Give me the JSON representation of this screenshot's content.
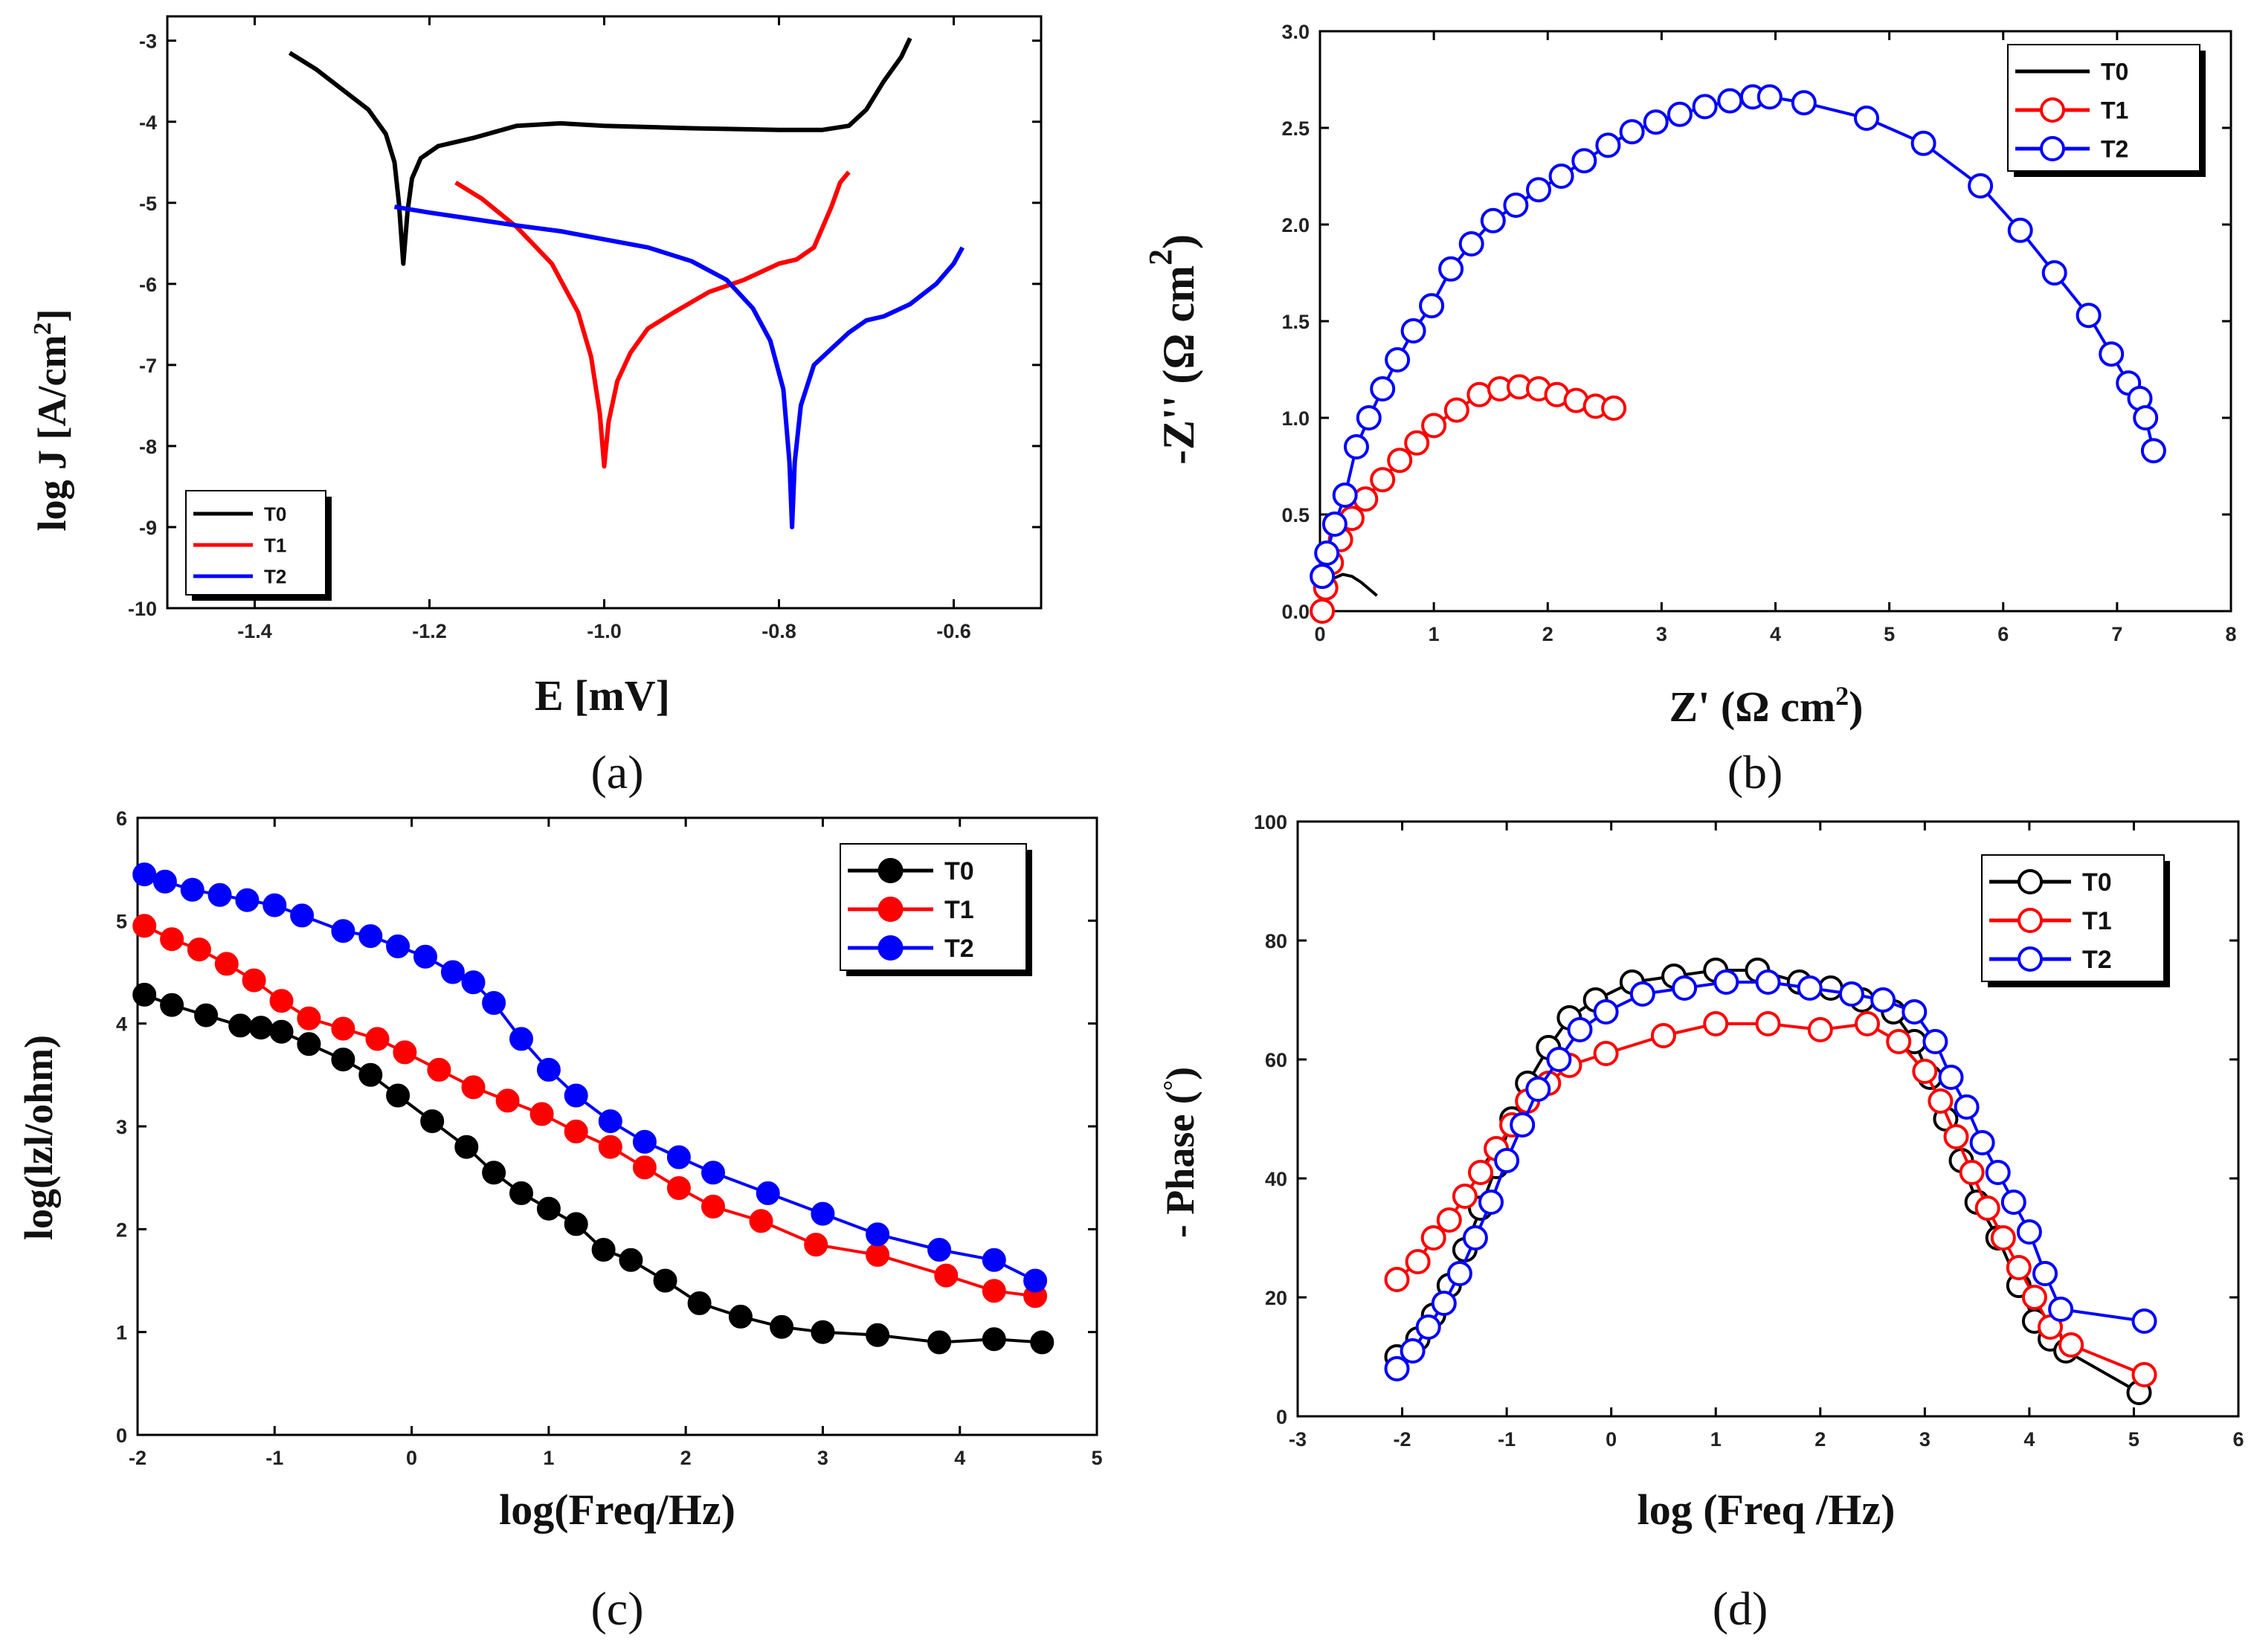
{
  "chart_data": [
    {
      "id": "a",
      "type": "line",
      "panel_label": "(a)",
      "xlabel": "E [mV]",
      "ylabel": "log J [A/cm",
      "ylabel_sup": "2",
      "ylabel_close": "]",
      "xlim": [
        -1.5,
        -0.5
      ],
      "ylim": [
        -10,
        -2.7
      ],
      "xticks": [
        -1.4,
        -1.2,
        -1.0,
        -0.8,
        -0.6
      ],
      "xtick_labels": [
        "-1.4",
        "-1.2",
        "-1.0",
        "-0.8",
        "-0.6"
      ],
      "yticks": [
        -10,
        -9,
        -8,
        -7,
        -6,
        -5,
        -4,
        -3
      ],
      "ytick_labels": [
        "-10",
        "-9",
        "-8",
        "-7",
        "-6",
        "-5",
        "-4",
        "-3"
      ],
      "legend_position": "bottom-left",
      "series": [
        {
          "name": "T0",
          "color": "#000000",
          "marker": "none",
          "x": [
            -1.36,
            -1.33,
            -1.3,
            -1.27,
            -1.25,
            -1.24,
            -1.235,
            -1.23,
            -1.225,
            -1.22,
            -1.21,
            -1.19,
            -1.15,
            -1.1,
            -1.05,
            -1.0,
            -0.9,
            -0.8,
            -0.75,
            -0.72,
            -0.7,
            -0.68,
            -0.66,
            -0.65
          ],
          "y": [
            -3.15,
            -3.35,
            -3.6,
            -3.85,
            -4.15,
            -4.5,
            -5.0,
            -5.75,
            -5.1,
            -4.7,
            -4.45,
            -4.3,
            -4.2,
            -4.05,
            -4.02,
            -4.05,
            -4.08,
            -4.1,
            -4.1,
            -4.05,
            -3.85,
            -3.5,
            -3.2,
            -2.97
          ]
        },
        {
          "name": "T1",
          "color": "#ff0000",
          "marker": "none",
          "x": [
            -1.17,
            -1.14,
            -1.1,
            -1.06,
            -1.03,
            -1.015,
            -1.005,
            -1.0,
            -0.995,
            -0.985,
            -0.97,
            -0.95,
            -0.92,
            -0.88,
            -0.84,
            -0.8,
            -0.78,
            -0.76,
            -0.75,
            -0.74,
            -0.73,
            -0.72
          ],
          "y": [
            -4.75,
            -4.95,
            -5.3,
            -5.75,
            -6.35,
            -6.9,
            -7.6,
            -8.25,
            -7.7,
            -7.2,
            -6.85,
            -6.55,
            -6.35,
            -6.1,
            -5.95,
            -5.75,
            -5.7,
            -5.55,
            -5.3,
            -5.05,
            -4.75,
            -4.62
          ]
        },
        {
          "name": "T2",
          "color": "#0000ff",
          "marker": "none",
          "x": [
            -1.24,
            -1.2,
            -1.15,
            -1.1,
            -1.05,
            -1.0,
            -0.95,
            -0.9,
            -0.86,
            -0.83,
            -0.81,
            -0.795,
            -0.788,
            -0.785,
            -0.782,
            -0.775,
            -0.76,
            -0.74,
            -0.72,
            -0.7,
            -0.68,
            -0.65,
            -0.62,
            -0.6,
            -0.59
          ],
          "y": [
            -5.05,
            -5.12,
            -5.2,
            -5.28,
            -5.35,
            -5.45,
            -5.55,
            -5.72,
            -5.95,
            -6.3,
            -6.7,
            -7.3,
            -8.2,
            -9.0,
            -8.2,
            -7.5,
            -7.0,
            -6.8,
            -6.6,
            -6.45,
            -6.4,
            -6.25,
            -6.0,
            -5.75,
            -5.55
          ]
        }
      ]
    },
    {
      "id": "b",
      "type": "scatter",
      "panel_label": "(b)",
      "xlabel": "Z' (Ω cm",
      "xlabel_sup": "2",
      "xlabel_close": ")",
      "ylabel": "-Z'' (Ω cm",
      "ylabel_sup": "2",
      "ylabel_close": ")",
      "xlim": [
        0,
        8
      ],
      "ylim": [
        0,
        3
      ],
      "xticks": [
        0,
        1,
        2,
        3,
        4,
        5,
        6,
        7,
        8
      ],
      "xtick_labels": [
        "0",
        "1",
        "2",
        "3",
        "4",
        "5",
        "6",
        "7",
        "8"
      ],
      "yticks": [
        0,
        0.5,
        1.0,
        1.5,
        2.0,
        2.5,
        3.0
      ],
      "ytick_labels": [
        "0.0",
        "0.5",
        "1.0",
        "1.5",
        "2.0",
        "2.5",
        "3.0"
      ],
      "legend_position": "top-right",
      "series": [
        {
          "name": "T0",
          "color": "#000000",
          "marker": "none",
          "x": [
            0.0,
            0.05,
            0.12,
            0.2,
            0.28,
            0.36,
            0.44,
            0.5
          ],
          "y": [
            0.0,
            0.1,
            0.17,
            0.19,
            0.18,
            0.15,
            0.11,
            0.08
          ]
        },
        {
          "name": "T1",
          "color": "#ff0000",
          "marker": "open-circle",
          "x": [
            0.02,
            0.05,
            0.1,
            0.18,
            0.28,
            0.4,
            0.55,
            0.7,
            0.85,
            1.0,
            1.2,
            1.4,
            1.58,
            1.75,
            1.92,
            2.08,
            2.25,
            2.42,
            2.58
          ],
          "y": [
            0.0,
            0.12,
            0.25,
            0.37,
            0.48,
            0.58,
            0.68,
            0.78,
            0.87,
            0.96,
            1.04,
            1.12,
            1.15,
            1.16,
            1.15,
            1.12,
            1.09,
            1.06,
            1.05
          ]
        },
        {
          "name": "T2",
          "color": "#0000ff",
          "marker": "open-circle",
          "x": [
            0.02,
            0.06,
            0.13,
            0.22,
            0.32,
            0.43,
            0.55,
            0.68,
            0.82,
            0.98,
            1.15,
            1.33,
            1.52,
            1.72,
            1.92,
            2.12,
            2.32,
            2.53,
            2.74,
            2.95,
            3.16,
            3.38,
            3.6,
            3.8,
            3.95,
            4.25,
            4.8,
            5.3,
            5.8,
            6.15,
            6.45,
            6.75,
            6.95,
            7.1,
            7.2,
            7.25,
            7.32
          ],
          "y": [
            0.18,
            0.3,
            0.45,
            0.6,
            0.85,
            1.0,
            1.15,
            1.3,
            1.45,
            1.58,
            1.77,
            1.9,
            2.02,
            2.1,
            2.18,
            2.25,
            2.33,
            2.41,
            2.48,
            2.53,
            2.57,
            2.61,
            2.64,
            2.66,
            2.66,
            2.63,
            2.55,
            2.42,
            2.2,
            1.97,
            1.75,
            1.53,
            1.33,
            1.18,
            1.1,
            1.0,
            0.83
          ]
        }
      ]
    },
    {
      "id": "c",
      "type": "line",
      "panel_label": "(c)",
      "xlabel": "log(Freq/Hz)",
      "ylabel": "log(lzl/ohm)",
      "xlim": [
        -2,
        5
      ],
      "ylim": [
        0,
        6
      ],
      "xticks": [
        -2,
        -1,
        0,
        1,
        2,
        3,
        4,
        5
      ],
      "xtick_labels": [
        "-2",
        "-1",
        "0",
        "1",
        "2",
        "3",
        "4",
        "5"
      ],
      "yticks": [
        0,
        1,
        2,
        3,
        4,
        5,
        6
      ],
      "ytick_labels": [
        "0",
        "1",
        "2",
        "3",
        "4",
        "5",
        "6"
      ],
      "legend_position": "top-right",
      "series": [
        {
          "name": "T0",
          "color": "#000000",
          "marker": "filled-circle",
          "x": [
            -1.95,
            -1.75,
            -1.5,
            -1.25,
            -1.1,
            -0.95,
            -0.75,
            -0.5,
            -0.3,
            -0.1,
            0.15,
            0.4,
            0.6,
            0.8,
            1.0,
            1.2,
            1.4,
            1.6,
            1.85,
            2.1,
            2.4,
            2.7,
            3.0,
            3.4,
            3.85,
            4.25,
            4.6
          ],
          "y": [
            4.28,
            4.18,
            4.08,
            3.98,
            3.96,
            3.92,
            3.8,
            3.65,
            3.5,
            3.3,
            3.05,
            2.8,
            2.55,
            2.35,
            2.2,
            2.05,
            1.8,
            1.7,
            1.5,
            1.28,
            1.15,
            1.05,
            1.0,
            0.97,
            0.9,
            0.93,
            0.9
          ]
        },
        {
          "name": "T1",
          "color": "#ff0000",
          "marker": "filled-circle",
          "x": [
            -1.95,
            -1.75,
            -1.55,
            -1.35,
            -1.15,
            -0.95,
            -0.75,
            -0.5,
            -0.25,
            -0.05,
            0.2,
            0.45,
            0.7,
            0.95,
            1.2,
            1.45,
            1.7,
            1.95,
            2.2,
            2.55,
            2.95,
            3.4,
            3.9,
            4.25,
            4.55
          ],
          "y": [
            4.95,
            4.82,
            4.72,
            4.58,
            4.42,
            4.22,
            4.05,
            3.95,
            3.85,
            3.72,
            3.55,
            3.38,
            3.25,
            3.12,
            2.95,
            2.8,
            2.6,
            2.4,
            2.22,
            2.08,
            1.85,
            1.75,
            1.55,
            1.4,
            1.35
          ]
        },
        {
          "name": "T2",
          "color": "#0000ff",
          "marker": "filled-circle",
          "x": [
            -1.95,
            -1.8,
            -1.6,
            -1.4,
            -1.2,
            -1.0,
            -0.8,
            -0.5,
            -0.3,
            -0.1,
            0.1,
            0.3,
            0.45,
            0.6,
            0.8,
            1.0,
            1.2,
            1.45,
            1.7,
            1.95,
            2.2,
            2.6,
            3.0,
            3.4,
            3.85,
            4.25,
            4.55
          ],
          "y": [
            5.45,
            5.38,
            5.3,
            5.25,
            5.2,
            5.15,
            5.05,
            4.9,
            4.85,
            4.75,
            4.65,
            4.5,
            4.4,
            4.2,
            3.85,
            3.55,
            3.3,
            3.05,
            2.85,
            2.7,
            2.55,
            2.35,
            2.15,
            1.95,
            1.8,
            1.7,
            1.5
          ]
        }
      ]
    },
    {
      "id": "d",
      "type": "scatter",
      "panel_label": "(d)",
      "xlabel": "log (Freq /Hz)",
      "ylabel": "- Phase (",
      "ylabel_degree": "°",
      "ylabel_close": ")",
      "xlim": [
        -3,
        6
      ],
      "ylim": [
        0,
        100
      ],
      "xticks": [
        -3,
        -2,
        -1,
        0,
        1,
        2,
        3,
        4,
        5,
        6
      ],
      "xtick_labels": [
        "-3",
        "-2",
        "-1",
        "0",
        "1",
        "2",
        "3",
        "4",
        "5",
        "6"
      ],
      "yticks": [
        0,
        20,
        40,
        60,
        80,
        100
      ],
      "ytick_labels": [
        "0",
        "20",
        "40",
        "60",
        "80",
        "100"
      ],
      "legend_position": "top-right",
      "series": [
        {
          "name": "T0",
          "color": "#000000",
          "marker": "open-circle",
          "x": [
            -2.05,
            -1.85,
            -1.7,
            -1.55,
            -1.4,
            -1.25,
            -1.1,
            -0.95,
            -0.8,
            -0.6,
            -0.4,
            -0.15,
            0.2,
            0.6,
            1.0,
            1.4,
            1.8,
            2.1,
            2.4,
            2.7,
            2.9,
            3.05,
            3.2,
            3.35,
            3.5,
            3.7,
            3.9,
            4.05,
            4.2,
            4.35,
            5.05
          ],
          "y": [
            10,
            13,
            17,
            22,
            28,
            35,
            42,
            50,
            56,
            62,
            67,
            70,
            73,
            74,
            75,
            75,
            73,
            72,
            70,
            68,
            63,
            57,
            50,
            43,
            36,
            30,
            22,
            16,
            13,
            11,
            4
          ]
        },
        {
          "name": "T1",
          "color": "#ff0000",
          "marker": "open-circle",
          "x": [
            -2.05,
            -1.85,
            -1.7,
            -1.55,
            -1.4,
            -1.25,
            -1.1,
            -0.95,
            -0.8,
            -0.6,
            -0.4,
            -0.05,
            0.5,
            1.0,
            1.5,
            2.0,
            2.45,
            2.75,
            3.0,
            3.15,
            3.3,
            3.45,
            3.6,
            3.75,
            3.9,
            4.05,
            4.2,
            4.4,
            5.1
          ],
          "y": [
            23,
            26,
            30,
            33,
            37,
            41,
            45,
            49,
            53,
            56,
            59,
            61,
            64,
            66,
            66,
            65,
            66,
            63,
            58,
            53,
            47,
            41,
            35,
            30,
            25,
            20,
            15,
            12,
            7
          ]
        },
        {
          "name": "T2",
          "color": "#0000ff",
          "marker": "open-circle",
          "x": [
            -2.05,
            -1.9,
            -1.75,
            -1.6,
            -1.45,
            -1.3,
            -1.15,
            -1.0,
            -0.85,
            -0.7,
            -0.5,
            -0.3,
            -0.05,
            0.3,
            0.7,
            1.1,
            1.5,
            1.9,
            2.3,
            2.6,
            2.9,
            3.1,
            3.25,
            3.4,
            3.55,
            3.7,
            3.85,
            4.0,
            4.15,
            4.3,
            5.1
          ],
          "y": [
            8,
            11,
            15,
            19,
            24,
            30,
            36,
            43,
            49,
            55,
            60,
            65,
            68,
            71,
            72,
            73,
            73,
            72,
            71,
            70,
            68,
            63,
            57,
            52,
            46,
            41,
            36,
            31,
            24,
            18,
            16
          ]
        }
      ]
    }
  ]
}
